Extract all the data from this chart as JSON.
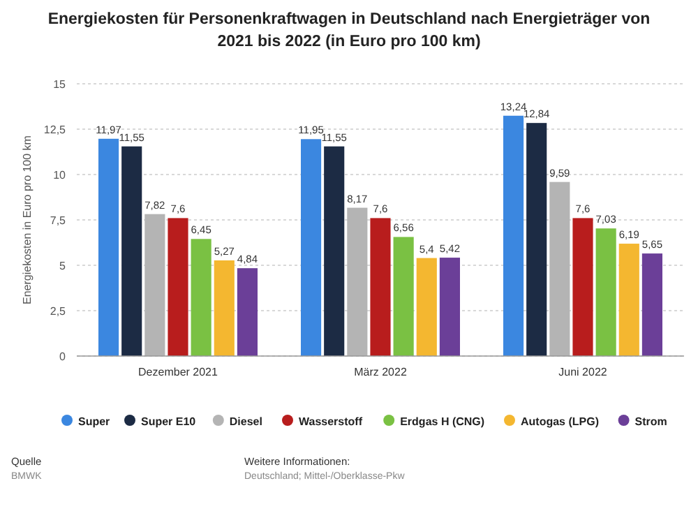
{
  "chart_data": {
    "type": "bar",
    "title": "Energiekosten für Personenkraftwagen in Deutschland nach Energieträger von 2021 bis 2022 (in Euro pro 100 km)",
    "ylabel": "Energiekosten in Euro pro 100 km",
    "categories": [
      "Dezember 2021",
      "März 2022",
      "Juni 2022"
    ],
    "series": [
      {
        "name": "Super",
        "color": "#3b87e0",
        "values": [
          11.97,
          11.95,
          13.24
        ],
        "value_labels": [
          "11,97",
          "11,95",
          "13,24"
        ]
      },
      {
        "name": "Super E10",
        "color": "#1c2b44",
        "values": [
          11.55,
          11.55,
          12.84
        ],
        "value_labels": [
          "11,55",
          "11,55",
          "12,84"
        ]
      },
      {
        "name": "Diesel",
        "color": "#b4b4b4",
        "values": [
          7.82,
          8.17,
          9.59
        ],
        "value_labels": [
          "7,82",
          "8,17",
          "9,59"
        ]
      },
      {
        "name": "Wasserstoff",
        "color": "#b81d1d",
        "values": [
          7.6,
          7.6,
          7.6
        ],
        "value_labels": [
          "7,6",
          "7,6",
          "7,6"
        ]
      },
      {
        "name": "Erdgas H (CNG)",
        "color": "#7ac143",
        "values": [
          6.45,
          6.56,
          7.03
        ],
        "value_labels": [
          "6,45",
          "6,56",
          "7,03"
        ]
      },
      {
        "name": "Autogas (LPG)",
        "color": "#f4b730",
        "values": [
          5.27,
          5.4,
          6.19
        ],
        "value_labels": [
          "5,27",
          "5,4",
          "6,19"
        ]
      },
      {
        "name": "Strom",
        "color": "#6b3f98",
        "values": [
          4.84,
          5.42,
          5.65
        ],
        "value_labels": [
          "4,84",
          "5,42",
          "5,65"
        ]
      }
    ],
    "ylim": [
      0,
      15
    ],
    "yticks": [
      0,
      {
        "value": 2.5,
        "label": "2,5"
      },
      5,
      {
        "value": 7.5,
        "label": "7,5"
      },
      10,
      {
        "value": 12.5,
        "label": "12,5"
      },
      15
    ],
    "grid": "y",
    "legend": "bottom",
    "annotations": [
      "Quelle",
      "BMWK",
      "Weitere Informationen:",
      "Deutschland; Mittel-/Oberklasse-Pkw"
    ]
  }
}
